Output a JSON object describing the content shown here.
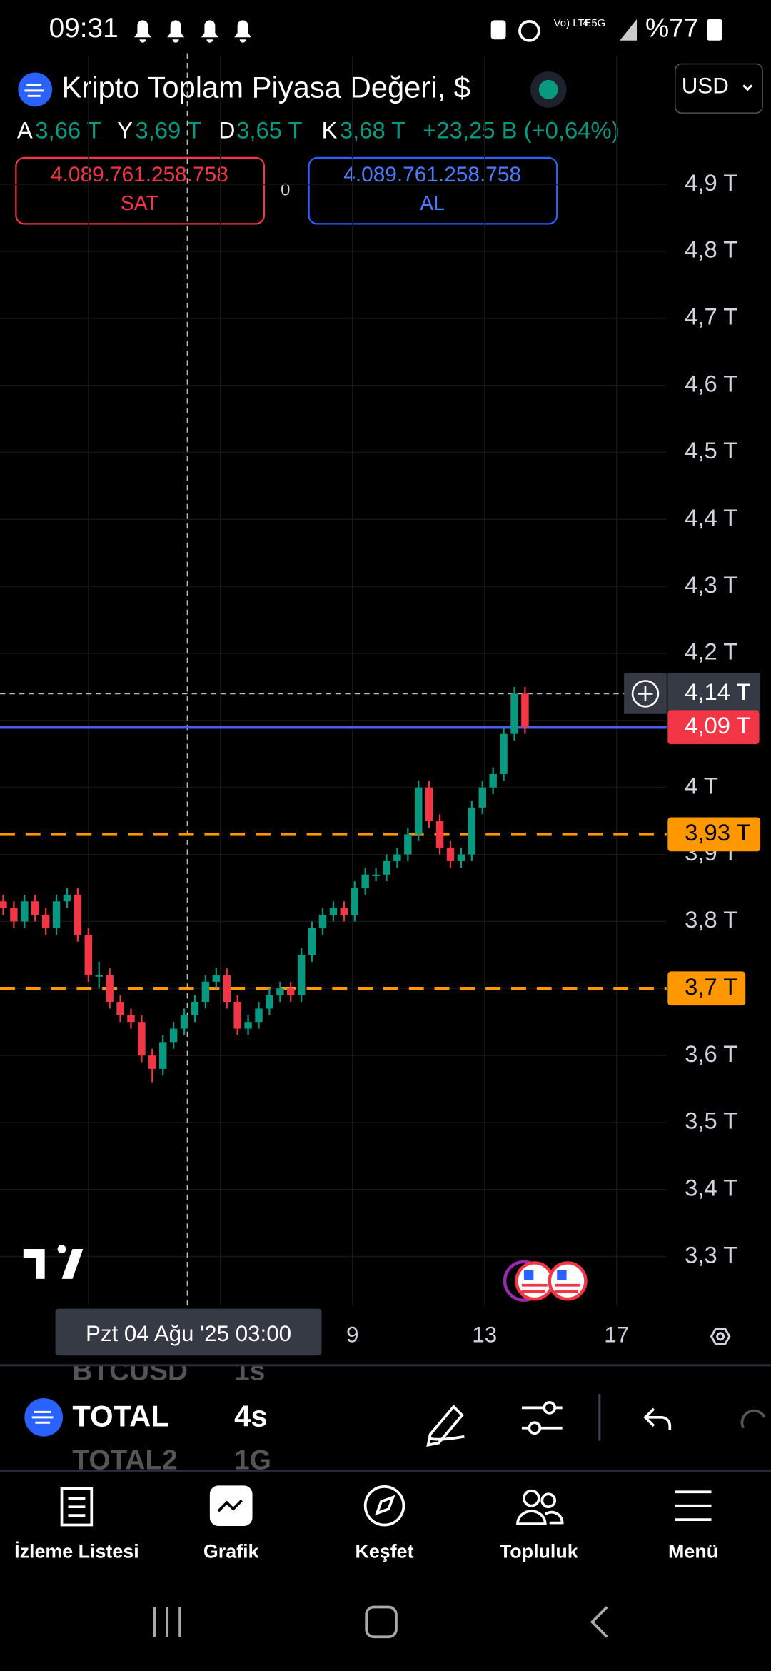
{
  "status_bar": {
    "time": "09:31",
    "network": "4,5G",
    "battery": "%77"
  },
  "header": {
    "title": "Kripto Toplam Piyasa Değeri, $",
    "currency": "USD"
  },
  "ohlc": {
    "open_label": "A",
    "open": "3,66 T",
    "high_label": "Y",
    "high": "3,69 T",
    "low_label": "D",
    "low": "3,65 T",
    "close_label": "K",
    "close": "3,68 T",
    "change": "+23,25 B (+0,64%)"
  },
  "trade": {
    "sell_price": "4.089.761.258.758",
    "sell_label": "SAT",
    "spread": "0",
    "buy_price": "4.089.761.258.758",
    "buy_label": "AL"
  },
  "chart_data": {
    "type": "candlestick",
    "ylim": [
      3.227,
      4.997
    ],
    "yticks": [
      {
        "value": 3.3,
        "label": "3,3 T"
      },
      {
        "value": 3.4,
        "label": "3,4 T"
      },
      {
        "value": 3.5,
        "label": "3,5 T"
      },
      {
        "value": 3.6,
        "label": "3,6 T"
      },
      {
        "value": 3.7,
        "label": "3,7 T"
      },
      {
        "value": 3.8,
        "label": "3,8 T"
      },
      {
        "value": 3.9,
        "label": "3,9 T"
      },
      {
        "value": 4,
        "label": "4 T"
      },
      {
        "value": 4.1,
        "label": "4,1 T"
      },
      {
        "value": 4.2,
        "label": "4,2 T"
      },
      {
        "value": 4.3,
        "label": "4,3 T"
      },
      {
        "value": 4.4,
        "label": "4,4 T"
      },
      {
        "value": 4.5,
        "label": "4,5 T"
      },
      {
        "value": 4.6,
        "label": "4,6 T"
      },
      {
        "value": 4.7,
        "label": "4,7 T"
      },
      {
        "value": 4.8,
        "label": "4,8 T"
      },
      {
        "value": 4.9,
        "label": "4,9 T"
      }
    ],
    "xtick_labels": [
      "9",
      "13",
      "17"
    ],
    "up_color": "#089981",
    "down_color": "#f23645",
    "open": [
      3.83,
      3.82,
      3.8,
      3.83,
      3.81,
      3.79,
      3.83,
      3.84,
      3.78,
      3.72,
      3.72,
      3.68,
      3.66,
      3.65,
      3.6,
      3.58,
      3.62,
      3.64,
      3.66,
      3.68,
      3.71,
      3.72,
      3.68,
      3.64,
      3.65,
      3.67,
      3.69,
      3.7,
      3.69,
      3.75,
      3.79,
      3.81,
      3.82,
      3.81,
      3.85,
      3.87,
      3.87,
      3.89,
      3.9,
      3.93,
      4.0,
      3.95,
      3.91,
      3.89,
      3.9,
      3.97,
      4.0,
      4.02,
      4.08,
      4.14
    ],
    "high": [
      3.84,
      3.83,
      3.84,
      3.84,
      3.82,
      3.84,
      3.85,
      3.85,
      3.79,
      3.74,
      3.73,
      3.69,
      3.67,
      3.66,
      3.61,
      3.63,
      3.65,
      3.67,
      3.69,
      3.72,
      3.73,
      3.73,
      3.69,
      3.66,
      3.68,
      3.7,
      3.71,
      3.71,
      3.76,
      3.8,
      3.82,
      3.83,
      3.83,
      3.86,
      3.88,
      3.88,
      3.9,
      3.91,
      3.94,
      4.01,
      4.01,
      3.96,
      3.92,
      3.91,
      3.98,
      4.01,
      4.03,
      4.09,
      4.15,
      4.15
    ],
    "low": [
      3.81,
      3.79,
      3.79,
      3.8,
      3.78,
      3.78,
      3.82,
      3.77,
      3.71,
      3.7,
      3.67,
      3.65,
      3.64,
      3.59,
      3.56,
      3.57,
      3.61,
      3.63,
      3.65,
      3.67,
      3.7,
      3.67,
      3.63,
      3.63,
      3.64,
      3.66,
      3.68,
      3.68,
      3.68,
      3.74,
      3.78,
      3.8,
      3.8,
      3.8,
      3.84,
      3.86,
      3.86,
      3.88,
      3.89,
      3.92,
      3.94,
      3.9,
      3.88,
      3.88,
      3.89,
      3.96,
      3.99,
      4.01,
      4.07,
      4.08
    ],
    "close": [
      3.82,
      3.8,
      3.83,
      3.81,
      3.79,
      3.83,
      3.84,
      3.78,
      3.72,
      3.72,
      3.68,
      3.66,
      3.65,
      3.6,
      3.58,
      3.62,
      3.64,
      3.66,
      3.68,
      3.71,
      3.72,
      3.68,
      3.64,
      3.65,
      3.67,
      3.69,
      3.7,
      3.69,
      3.75,
      3.79,
      3.81,
      3.82,
      3.81,
      3.85,
      3.87,
      3.87,
      3.89,
      3.9,
      3.93,
      4.0,
      3.95,
      3.91,
      3.89,
      3.9,
      3.97,
      4.0,
      4.02,
      4.08,
      4.14,
      4.09
    ],
    "last_price": {
      "value": 4.09,
      "label": "4,09 T",
      "color": "#f23645",
      "line_color": "#4a5ee8"
    },
    "crosshair": {
      "value": 4.14,
      "label": "4,14 T",
      "x_label": "Pzt 04 Ağu '25   03:00"
    },
    "levels": [
      {
        "value": 3.93,
        "label": "3,93 T",
        "color": "#ff9800"
      },
      {
        "value": 3.7,
        "label": "3,7 T",
        "color": "#ff9800"
      }
    ]
  },
  "symbol_bar": {
    "prev_symbol": "BTCUSD",
    "prev_interval": "1s",
    "symbol": "TOTAL",
    "interval": "4s",
    "next_symbol": "TOTAL2",
    "next_interval": "1G"
  },
  "nav": {
    "items": [
      "İzleme Listesi",
      "Grafik",
      "Keşfet",
      "Topluluk",
      "Menü"
    ]
  }
}
